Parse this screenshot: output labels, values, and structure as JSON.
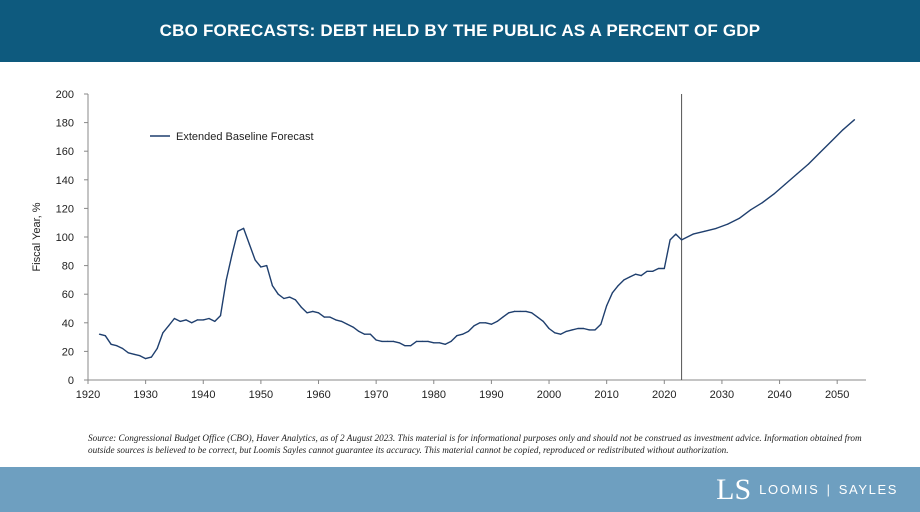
{
  "header": {
    "title": "CBO FORECASTS: DEBT HELD BY THE PUBLIC AS A PERCENT OF GDP"
  },
  "footnote": "Source: Congressional Budget Office (CBO), Haver Analytics, as of 2 August 2023. This material is for informational purposes only and should not be construed as investment advice. Information obtained from outside sources is believed to be correct, but Loomis Sayles cannot guarantee its accuracy. This material cannot be copied, reproduced or redistributed without authorization.",
  "logo": {
    "mark": "LS",
    "name_left": "LOOMIS",
    "separator": "|",
    "name_right": "SAYLES"
  },
  "colors": {
    "header_bg": "#0e5a7e",
    "footer_bg": "#6e9fc0",
    "line": "#1f3f6e",
    "marker": "#555555"
  },
  "chart_data": {
    "type": "line",
    "title": "",
    "xlabel": "",
    "ylabel": "Fiscal Year, %",
    "xlim": [
      1920,
      2055
    ],
    "ylim": [
      0,
      200
    ],
    "xticks": [
      1920,
      1930,
      1940,
      1950,
      1960,
      1970,
      1980,
      1990,
      2000,
      2010,
      2020,
      2030,
      2040,
      2050
    ],
    "yticks": [
      0,
      20,
      40,
      60,
      80,
      100,
      120,
      140,
      160,
      180,
      200
    ],
    "grid": false,
    "legend": "top-left",
    "vertical_marker_x": 2023,
    "series": [
      {
        "name": "Extended Baseline Forecast",
        "x": [
          1922,
          1923,
          1924,
          1925,
          1926,
          1927,
          1928,
          1929,
          1930,
          1931,
          1932,
          1933,
          1934,
          1935,
          1936,
          1937,
          1938,
          1939,
          1940,
          1941,
          1942,
          1943,
          1944,
          1945,
          1946,
          1947,
          1948,
          1949,
          1950,
          1951,
          1952,
          1953,
          1954,
          1955,
          1956,
          1957,
          1958,
          1959,
          1960,
          1961,
          1962,
          1963,
          1964,
          1965,
          1966,
          1967,
          1968,
          1969,
          1970,
          1971,
          1972,
          1973,
          1974,
          1975,
          1976,
          1977,
          1978,
          1979,
          1980,
          1981,
          1982,
          1983,
          1984,
          1985,
          1986,
          1987,
          1988,
          1989,
          1990,
          1991,
          1992,
          1993,
          1994,
          1995,
          1996,
          1997,
          1998,
          1999,
          2000,
          2001,
          2002,
          2003,
          2004,
          2005,
          2006,
          2007,
          2008,
          2009,
          2010,
          2011,
          2012,
          2013,
          2014,
          2015,
          2016,
          2017,
          2018,
          2019,
          2020,
          2021,
          2022,
          2023,
          2025,
          2027,
          2029,
          2031,
          2033,
          2035,
          2037,
          2039,
          2041,
          2043,
          2045,
          2047,
          2049,
          2051,
          2053
        ],
        "values": [
          32,
          31,
          25,
          24,
          22,
          19,
          18,
          17,
          15,
          16,
          22,
          33,
          38,
          43,
          41,
          42,
          40,
          42,
          42,
          43,
          41,
          45,
          70,
          88,
          104,
          106,
          95,
          84,
          79,
          80,
          66,
          60,
          57,
          58,
          56,
          51,
          47,
          48,
          47,
          44,
          44,
          42,
          41,
          39,
          37,
          34,
          32,
          32,
          28,
          27,
          27,
          27,
          26,
          24,
          24,
          27,
          27,
          27,
          26,
          26,
          25,
          27,
          31,
          32,
          34,
          38,
          40,
          40,
          39,
          41,
          44,
          47,
          48,
          48,
          48,
          47,
          44,
          41,
          36,
          33,
          32,
          34,
          35,
          36,
          36,
          35,
          35,
          39,
          52,
          61,
          66,
          70,
          72,
          74,
          73,
          76,
          76,
          78,
          78,
          98,
          102,
          98,
          102,
          104,
          106,
          109,
          113,
          119,
          124,
          130,
          137,
          144,
          151,
          159,
          167,
          175,
          182
        ]
      }
    ]
  }
}
